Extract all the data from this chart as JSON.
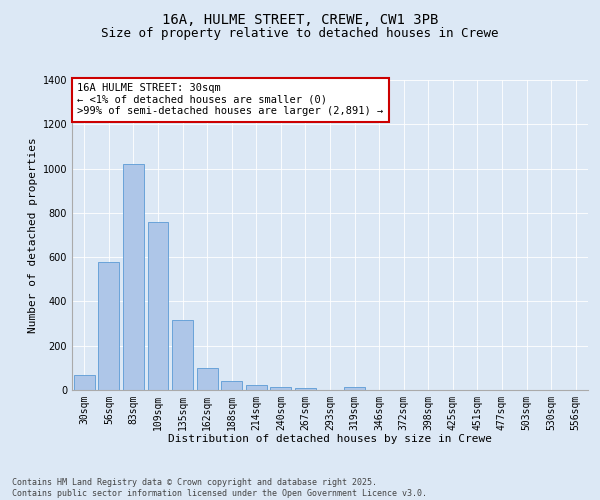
{
  "title1": "16A, HULME STREET, CREWE, CW1 3PB",
  "title2": "Size of property relative to detached houses in Crewe",
  "xlabel": "Distribution of detached houses by size in Crewe",
  "ylabel": "Number of detached properties",
  "categories": [
    "30sqm",
    "56sqm",
    "83sqm",
    "109sqm",
    "135sqm",
    "162sqm",
    "188sqm",
    "214sqm",
    "240sqm",
    "267sqm",
    "293sqm",
    "319sqm",
    "346sqm",
    "372sqm",
    "398sqm",
    "425sqm",
    "451sqm",
    "477sqm",
    "503sqm",
    "530sqm",
    "556sqm"
  ],
  "values": [
    70,
    580,
    1020,
    760,
    315,
    100,
    42,
    22,
    15,
    8,
    0,
    15,
    0,
    0,
    0,
    0,
    0,
    0,
    0,
    0,
    0
  ],
  "bar_color": "#aec6e8",
  "bar_edge_color": "#5b9bd5",
  "annotation_text": "16A HULME STREET: 30sqm\n← <1% of detached houses are smaller (0)\n>99% of semi-detached houses are larger (2,891) →",
  "annotation_box_color": "#ffffff",
  "annotation_border_color": "#cc0000",
  "ylim": [
    0,
    1400
  ],
  "yticks": [
    0,
    200,
    400,
    600,
    800,
    1000,
    1200,
    1400
  ],
  "bg_color": "#dce8f5",
  "plot_bg_color": "#dce8f5",
  "footer_text": "Contains HM Land Registry data © Crown copyright and database right 2025.\nContains public sector information licensed under the Open Government Licence v3.0.",
  "title_fontsize": 10,
  "subtitle_fontsize": 9,
  "annotation_fontsize": 7.5,
  "axis_label_fontsize": 8,
  "tick_fontsize": 7,
  "footer_fontsize": 6
}
